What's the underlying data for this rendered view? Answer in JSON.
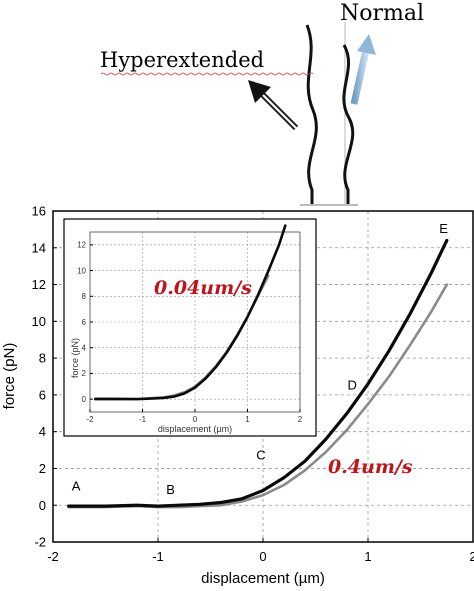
{
  "labels": {
    "normal": "Normal",
    "hyperextended": "Hyperextended",
    "speed_inset": "0.04um/s",
    "speed_main": "0.4um/s"
  },
  "colors": {
    "speed_text": "#c0141c",
    "dark_series": "#0a0a0a",
    "gray_series": "#8a8a8a",
    "arrow_blue": "#8fb8d8",
    "grid": "#9a9a9a"
  },
  "chart_data": [
    {
      "type": "line",
      "xlabel": "displacement (µm)",
      "ylabel": "force (pN)",
      "xlim": [
        -2,
        2
      ],
      "ylim": [
        -2,
        16
      ],
      "xticks": [
        "-2",
        "-1",
        "0",
        "1",
        "2"
      ],
      "yticks": [
        "-2",
        "0",
        "2",
        "4",
        "6",
        "8",
        "10",
        "12",
        "14",
        "16"
      ],
      "grid": true,
      "point_labels": [
        {
          "text": "A",
          "x": -1.78,
          "y": 0.8
        },
        {
          "text": "B",
          "x": -0.88,
          "y": 0.6
        },
        {
          "text": "C",
          "x": -0.02,
          "y": 2.5
        },
        {
          "text": "D",
          "x": 0.85,
          "y": 6.3
        },
        {
          "text": "E",
          "x": 1.72,
          "y": 14.8
        }
      ],
      "series": [
        {
          "x": [
            -1.85,
            -1.5,
            -1.2,
            -1.0,
            -0.8,
            -0.6,
            -0.4,
            -0.2,
            0.0,
            0.2,
            0.4,
            0.6,
            0.8,
            1.0,
            1.2,
            1.4,
            1.6,
            1.75
          ],
          "y": [
            -0.05,
            -0.05,
            0.0,
            -0.05,
            0.0,
            0.05,
            0.15,
            0.35,
            0.8,
            1.5,
            2.4,
            3.6,
            5.0,
            6.6,
            8.4,
            10.4,
            12.6,
            14.4
          ]
        },
        {
          "x": [
            -1.85,
            -1.5,
            -1.2,
            -1.0,
            -0.8,
            -0.6,
            -0.4,
            -0.2,
            0.0,
            0.2,
            0.4,
            0.6,
            0.8,
            1.0,
            1.2,
            1.4,
            1.6,
            1.75
          ],
          "y": [
            -0.1,
            -0.1,
            -0.05,
            -0.1,
            -0.1,
            -0.05,
            0.0,
            0.2,
            0.55,
            1.1,
            1.9,
            2.9,
            4.1,
            5.5,
            7.0,
            8.7,
            10.5,
            12.0
          ]
        }
      ]
    },
    {
      "type": "line",
      "xlabel": "displacement (µm)",
      "ylabel": "force (pN)",
      "xlim": [
        -2,
        2
      ],
      "ylim": [
        -1,
        13
      ],
      "xticks": [
        "-2",
        "-1",
        "0",
        "1",
        "2"
      ],
      "yticks": [
        "0",
        "2",
        "4",
        "6",
        "8",
        "10",
        "12"
      ],
      "grid": true,
      "series": [
        {
          "x": [
            -1.9,
            -1.5,
            -1.1,
            -0.8,
            -0.6,
            -0.4,
            -0.2,
            0.0,
            0.2,
            0.4,
            0.6,
            0.8,
            1.0,
            1.2,
            1.4,
            1.6,
            1.72
          ],
          "y": [
            0.0,
            0.0,
            0.0,
            0.05,
            0.1,
            0.2,
            0.45,
            0.9,
            1.6,
            2.5,
            3.6,
            4.9,
            6.4,
            8.1,
            10.0,
            12.0,
            13.5
          ]
        },
        {
          "x": [
            -1.9,
            -1.5,
            -1.1,
            -0.8,
            -0.6,
            -0.4,
            -0.2,
            0.0,
            0.2,
            0.4,
            0.6,
            0.8,
            1.0,
            1.2,
            1.4
          ],
          "y": [
            0.05,
            0.05,
            0.0,
            0.1,
            0.15,
            0.3,
            0.55,
            1.0,
            1.7,
            2.6,
            3.7,
            5.0,
            6.4,
            8.0,
            9.6
          ]
        }
      ]
    }
  ]
}
